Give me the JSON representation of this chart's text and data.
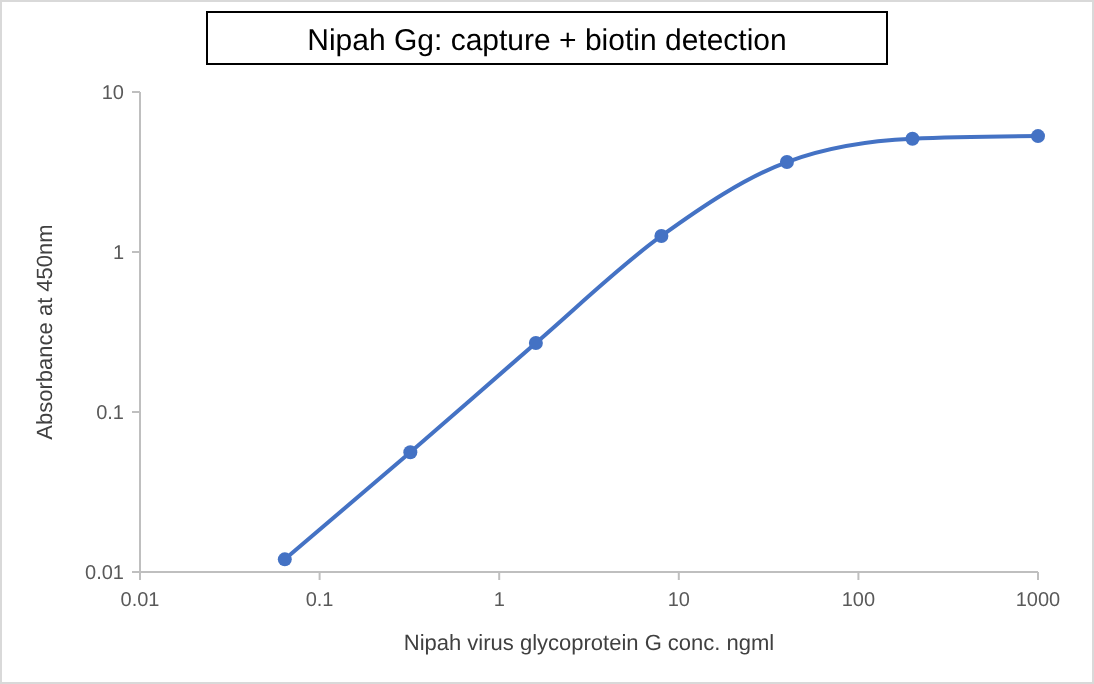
{
  "chart_data": {
    "type": "line",
    "title": "Nipah Gg: capture + biotin detection",
    "xlabel": "Nipah virus glycoprotein G conc. ngml",
    "ylabel": "Absorbance at 450nm",
    "x": [
      0.064,
      0.32,
      1.6,
      8,
      40,
      200,
      1000
    ],
    "series": [
      {
        "color": "#4472c4",
        "values": [
          0.012,
          0.056,
          0.27,
          1.26,
          3.65,
          5.1,
          5.3
        ]
      }
    ],
    "log": "xy",
    "xlim": [
      0.01,
      1000
    ],
    "ylim": [
      0.01,
      10
    ],
    "xticks": [
      0.01,
      0.1,
      1,
      10,
      100,
      1000
    ],
    "yticks": [
      0.01,
      0.1,
      1,
      10
    ],
    "grid": false,
    "marker": "circle",
    "line_style": "solid"
  }
}
